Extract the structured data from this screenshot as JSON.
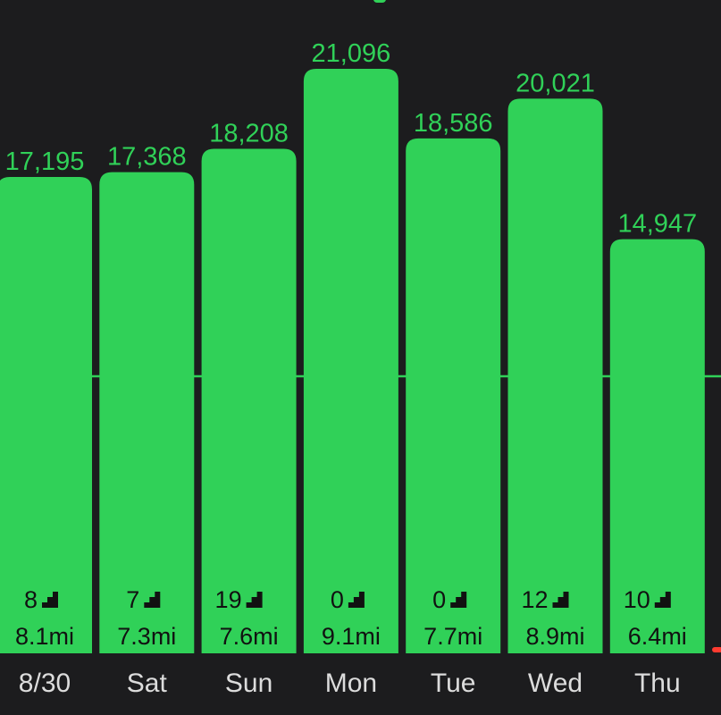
{
  "chart_data": {
    "type": "bar",
    "categories": [
      "8/30",
      "Sat",
      "Sun",
      "Mon",
      "Tue",
      "Wed",
      "Thu"
    ],
    "values": [
      17195,
      17368,
      18208,
      21096,
      18586,
      20021,
      14947
    ],
    "value_labels": [
      "17,195",
      "17,368",
      "18,208",
      "21,096",
      "18,586",
      "20,021",
      "14,947"
    ],
    "flights": [
      "8",
      "7",
      "19",
      "0",
      "0",
      "12",
      "10"
    ],
    "distance": [
      "8.1mi",
      "7.3mi",
      "7.6mi",
      "9.1mi",
      "7.7mi",
      "8.9mi",
      "6.4mi"
    ],
    "goal_line": 10000,
    "ylim": [
      0,
      23300
    ],
    "xlabel": "",
    "ylabel": "",
    "grid": false,
    "colors": {
      "background": "#1c1c1e",
      "bar": "#30d158",
      "value_label": "#30d158",
      "inner_text": "#111111",
      "category_label": "#dcdcdc",
      "indicator": "#ff3b30"
    },
    "icon": "stairs-icon"
  }
}
